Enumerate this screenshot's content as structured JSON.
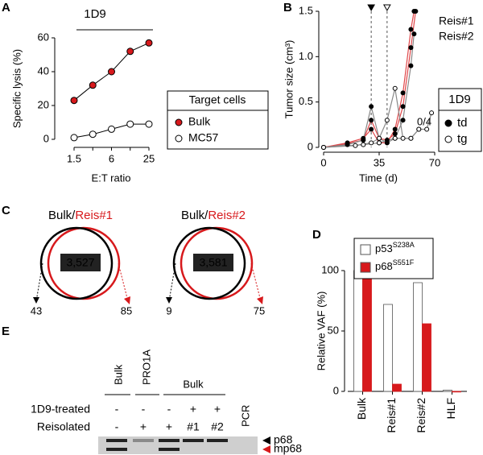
{
  "panel_labels": [
    "A",
    "B",
    "C",
    "D",
    "E"
  ],
  "chart_data": [
    {
      "type": "line",
      "title": "1D9",
      "xlabel": "E:T ratio",
      "ylabel": "Specific lysis (%)",
      "categories": [
        "1.5",
        null,
        "6",
        null,
        "25"
      ],
      "ylim": [
        0,
        60
      ],
      "yticks": [
        0,
        20,
        40,
        60
      ],
      "legend_title": "Target cells",
      "series": [
        {
          "name": "Bulk",
          "color": "#d7191c",
          "marker": "filled",
          "values": [
            23,
            32,
            40,
            52,
            57
          ]
        },
        {
          "name": "MC57",
          "color": "#ffffff",
          "marker": "open",
          "values": [
            1,
            3,
            6,
            9,
            9
          ]
        }
      ]
    },
    {
      "type": "scatter-line",
      "xlabel": "Time (d)",
      "ylabel": "Tumor size (cm³)",
      "xlim": [
        0,
        70
      ],
      "xticks": [
        0,
        35,
        70
      ],
      "ylim": [
        0,
        1.5
      ],
      "yticks": [
        0,
        0.5,
        {
          "value": 1,
          "label": "1.0"
        },
        1.5
      ],
      "treatment_days": [
        {
          "x": 30,
          "marker": "filled"
        },
        {
          "x": 40,
          "marker": "open"
        }
      ],
      "annotation": "0/4",
      "legend": {
        "title": "1D9",
        "entries": [
          {
            "label": "td",
            "marker": "filled"
          },
          {
            "label": "tg",
            "marker": "open"
          }
        ]
      },
      "series": [
        {
          "name": "Reis#1",
          "color": "#e0474a",
          "marker": "filled",
          "x": [
            0,
            15,
            25,
            30,
            35,
            40,
            45,
            50,
            55,
            57
          ],
          "values": [
            0,
            0.05,
            0.1,
            0.2,
            0.05,
            0.05,
            0.2,
            0.6,
            1.3,
            1.5
          ]
        },
        {
          "name": "Reis#2",
          "color": "#e0474a",
          "marker": "filled",
          "x": [
            0,
            15,
            25,
            30,
            35,
            40,
            45,
            50,
            55,
            58
          ],
          "values": [
            0,
            0.04,
            0.08,
            0.3,
            0.1,
            0.08,
            0.15,
            0.45,
            1.1,
            1.5
          ]
        },
        {
          "color": "#888888",
          "marker": "filled",
          "x": [
            0,
            15,
            25,
            30,
            35,
            40,
            45,
            50,
            55,
            57
          ],
          "values": [
            0,
            0.03,
            0.08,
            0.45,
            0.1,
            0.05,
            0.1,
            0.3,
            0.9,
            1.25
          ]
        },
        {
          "color": "#888888",
          "marker": "open",
          "x": [
            0,
            20,
            30,
            35,
            40,
            45,
            50,
            55,
            60
          ],
          "values": [
            0,
            0.02,
            0.05,
            0.1,
            0.3,
            0.65,
            0.1,
            0.1,
            0.2
          ]
        },
        {
          "color": "#888888",
          "marker": "open",
          "x": [
            0,
            25,
            35,
            45,
            55,
            60,
            65,
            68
          ],
          "values": [
            0,
            0.03,
            0.05,
            0.1,
            0.1,
            0.2,
            0.2,
            0.38
          ]
        }
      ]
    },
    {
      "type": "bar",
      "ylabel": "Relative VAF (%)",
      "categories": [
        "Bulk",
        "Reis#1",
        "Reis#2",
        "HLF"
      ],
      "ylim": [
        0,
        100
      ],
      "yticks": [
        0,
        50,
        100
      ],
      "series": [
        {
          "name": "p53",
          "superscript": "S238A",
          "color": "#ffffff",
          "values": [
            100,
            72,
            90,
            1
          ]
        },
        {
          "name": "p68",
          "superscript": "S551F",
          "color": "#d7191c",
          "values": [
            100,
            6,
            56,
            0
          ]
        }
      ]
    }
  ],
  "venn": [
    {
      "left": "Bulk/",
      "right": "Reis#1",
      "shared": 3527,
      "shared_label": "3,527",
      "left_only": 43,
      "right_only": 85
    },
    {
      "left": "Bulk/",
      "right": "Reis#2",
      "shared": 3581,
      "shared_label": "3,581",
      "left_only": 9,
      "right_only": 75
    }
  ],
  "gel": {
    "groups": [
      "Bulk",
      "PRO1A",
      "Bulk"
    ],
    "row_labels": [
      "1D9-treated",
      "Reisolated"
    ],
    "rows": [
      [
        "-",
        "-",
        "-",
        "+",
        "+"
      ],
      [
        "-",
        "+",
        "+",
        "#1",
        "#2"
      ]
    ],
    "control_lane": "PCR",
    "bands": [
      "p68",
      "mp68"
    ]
  }
}
